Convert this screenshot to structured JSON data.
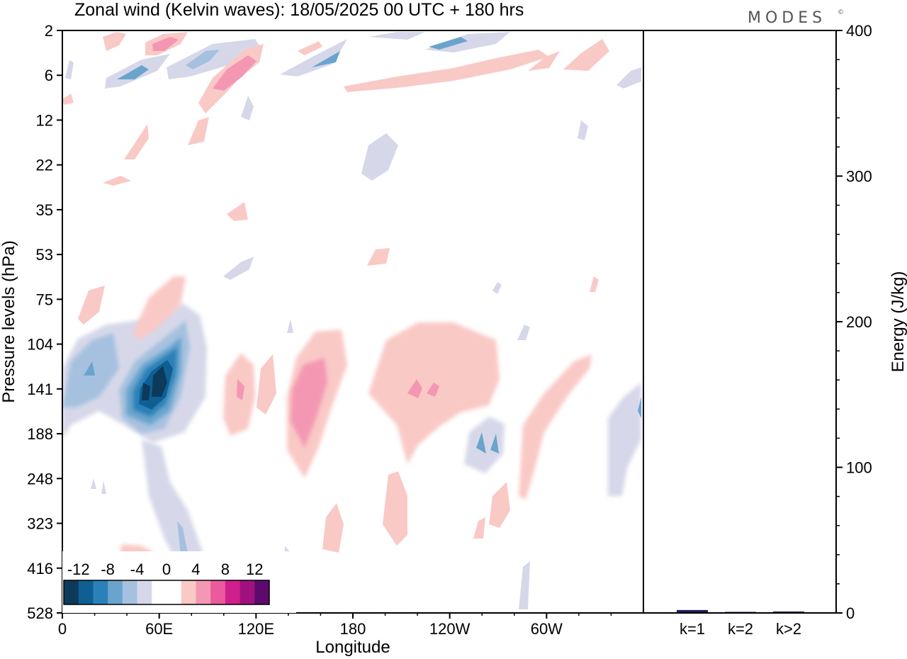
{
  "title": "Zonal wind (Kelvin waves):  18/05/2025  00 UTC  + 180 hrs",
  "brand": "MODES",
  "brand_mark": "©",
  "chart_data": [
    {
      "type": "heatmap",
      "title": "Zonal wind (Kelvin waves):  18/05/2025  00 UTC  + 180 hrs",
      "xlabel": "Longitude",
      "ylabel": "Pressure levels (hPa)",
      "x_ticks": [
        "0",
        "60E",
        "120E",
        "180",
        "120W",
        "60W"
      ],
      "x_tick_values": [
        0,
        60,
        120,
        180,
        240,
        300
      ],
      "xlim": [
        0,
        360
      ],
      "y_ticks": [
        "2",
        "6",
        "12",
        "22",
        "35",
        "53",
        "75",
        "104",
        "141",
        "188",
        "248",
        "323",
        "416",
        "528"
      ],
      "colorbar": {
        "labels": [
          "-12",
          "-8",
          "-4",
          "0",
          "4",
          "8",
          "12"
        ],
        "colors": [
          "#0d3a5a",
          "#0f5f93",
          "#2a80b8",
          "#6aa4cd",
          "#a6c1df",
          "#d6d8e9",
          "#ffffff",
          "#ffffff",
          "#f9c9c6",
          "#f497b3",
          "#ea5a9d",
          "#ce1f8d",
          "#a0117f",
          "#5d0a6f"
        ]
      },
      "contours": [
        {
          "level": "-4",
          "lon": 28,
          "level_index": 7.3
        },
        {
          "level": "-4",
          "lon": 50,
          "level_index": 8.0
        },
        {
          "level": "-8",
          "lon": 57,
          "level_index": 8.3
        },
        {
          "level": "-12",
          "lon": 60,
          "level_index": 8.2
        },
        {
          "level": "4",
          "lon": 145,
          "level_index": 8.6
        },
        {
          "level": "4",
          "lon": 215,
          "level_index": 8.4
        },
        {
          "level": "-4",
          "lon": 262,
          "level_index": 9.3
        },
        {
          "level": "4",
          "lon": 95,
          "level_index": 1.0
        },
        {
          "level": "-4",
          "lon": 225,
          "level_index": 0.2
        },
        {
          "level": "-4",
          "lon": 38,
          "level_index": 0.7
        },
        {
          "level": "4",
          "lon": 148,
          "level_index": 0.6
        }
      ]
    },
    {
      "type": "bar",
      "categories": [
        "k=1",
        "k=2",
        "k>2"
      ],
      "values": [
        2,
        0.4,
        1
      ],
      "ylabel": "Energy (J/kg)",
      "y_ticks": [
        "0",
        "100",
        "200",
        "300",
        "400"
      ],
      "ylim": [
        0,
        400
      ],
      "colors": {
        "bar": "#1a1a5e"
      }
    }
  ]
}
